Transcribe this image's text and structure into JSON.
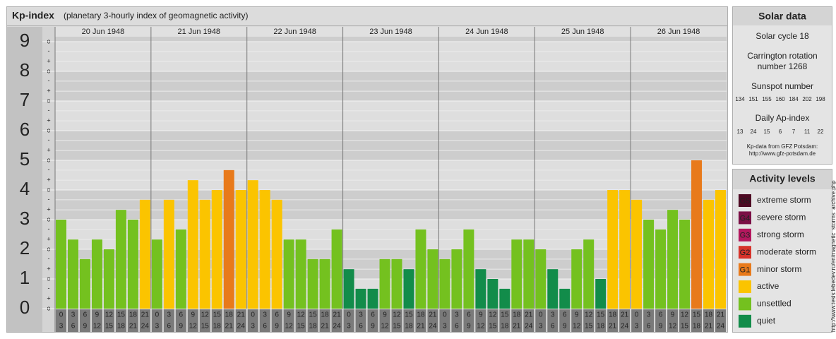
{
  "chart_data": {
    "type": "bar",
    "title": "Kp-index",
    "subtitle": "(planetary 3-hourly index of geomagnetic activity)",
    "days": [
      "20 Jun 1948",
      "21 Jun 1948",
      "22 Jun 1948",
      "23 Jun 1948",
      "24 Jun 1948",
      "25 Jun 1948",
      "26 Jun 1948"
    ],
    "hour_labels": [
      [
        0,
        3
      ],
      [
        3,
        6
      ],
      [
        6,
        9
      ],
      [
        9,
        12
      ],
      [
        12,
        15
      ],
      [
        15,
        18
      ],
      [
        18,
        21
      ],
      [
        21,
        24
      ]
    ],
    "values": [
      3,
      2.33,
      1.67,
      2.33,
      2,
      3.33,
      3,
      3.67,
      2.33,
      3.67,
      2.67,
      4.33,
      3.67,
      4,
      4.67,
      4,
      4.33,
      4,
      3.67,
      2.33,
      2.33,
      1.67,
      1.67,
      2.67,
      1.33,
      0.67,
      0.67,
      1.67,
      1.67,
      1.33,
      2.67,
      2,
      1.67,
      2,
      2.67,
      1.33,
      1,
      0.67,
      2.33,
      2.33,
      2,
      1.33,
      0.67,
      2,
      2.33,
      1,
      4,
      4,
      3.67,
      3,
      2.67,
      3.33,
      3,
      5,
      3.67,
      4
    ],
    "colors": [
      "#74c11f",
      "#74c11f",
      "#74c11f",
      "#74c11f",
      "#74c11f",
      "#74c11f",
      "#74c11f",
      "#fbc400",
      "#74c11f",
      "#fbc400",
      "#74c11f",
      "#fbc400",
      "#fbc400",
      "#fbc400",
      "#e87a1b",
      "#fbc400",
      "#fbc400",
      "#fbc400",
      "#fbc400",
      "#74c11f",
      "#74c11f",
      "#74c11f",
      "#74c11f",
      "#74c11f",
      "#128c4a",
      "#128c4a",
      "#128c4a",
      "#74c11f",
      "#74c11f",
      "#128c4a",
      "#74c11f",
      "#74c11f",
      "#74c11f",
      "#74c11f",
      "#74c11f",
      "#128c4a",
      "#128c4a",
      "#128c4a",
      "#74c11f",
      "#74c11f",
      "#74c11f",
      "#128c4a",
      "#128c4a",
      "#74c11f",
      "#74c11f",
      "#128c4a",
      "#fbc400",
      "#fbc400",
      "#fbc400",
      "#74c11f",
      "#74c11f",
      "#74c11f",
      "#74c11f",
      "#e87a1b",
      "#fbc400",
      "#fbc400"
    ],
    "ylim": [
      0,
      9.5
    ],
    "yticks": [
      0,
      1,
      2,
      3,
      4,
      5,
      6,
      7,
      8,
      9
    ],
    "minor_ticks": [
      {
        "value": 0,
        "label": "o"
      },
      {
        "value": 0.33,
        "label": "+"
      },
      {
        "value": 0.67,
        "label": "-"
      },
      {
        "value": 1,
        "label": "o"
      },
      {
        "value": 1.33,
        "label": "+"
      },
      {
        "value": 1.67,
        "label": "-"
      },
      {
        "value": 2,
        "label": "o"
      },
      {
        "value": 2.33,
        "label": "+"
      },
      {
        "value": 2.67,
        "label": "-"
      },
      {
        "value": 3,
        "label": "o"
      },
      {
        "value": 3.33,
        "label": "+"
      },
      {
        "value": 3.67,
        "label": "-"
      },
      {
        "value": 4,
        "label": "o"
      },
      {
        "value": 4.33,
        "label": "+"
      },
      {
        "value": 4.67,
        "label": "-"
      },
      {
        "value": 5,
        "label": "o"
      },
      {
        "value": 5.33,
        "label": "+"
      },
      {
        "value": 5.67,
        "label": "-"
      },
      {
        "value": 6,
        "label": "o"
      },
      {
        "value": 6.33,
        "label": "+"
      },
      {
        "value": 6.67,
        "label": "-"
      },
      {
        "value": 7,
        "label": "o"
      },
      {
        "value": 7.33,
        "label": "+"
      },
      {
        "value": 7.67,
        "label": "-"
      },
      {
        "value": 8,
        "label": "o"
      },
      {
        "value": 8.33,
        "label": "+"
      },
      {
        "value": 8.67,
        "label": "-"
      },
      {
        "value": 9,
        "label": "o"
      }
    ],
    "grid": true
  },
  "solar_data": {
    "title": "Solar data",
    "cycle": "Solar cycle 18",
    "carrington": [
      "Carrington rotation",
      "number 1268"
    ],
    "sunspot_title": "Sunspot number",
    "sunspot": [
      134,
      151,
      155,
      160,
      184,
      202,
      198
    ],
    "ap_title": "Daily Ap-index",
    "ap": [
      13,
      24,
      15,
      6,
      7,
      11,
      22
    ],
    "source": [
      "Kp-data from GFZ Potsdam:",
      "http://www.gfz-potsdam.de"
    ]
  },
  "activity_levels": {
    "title": "Activity levels",
    "items": [
      {
        "badge": "G5",
        "label": "extreme storm",
        "color": "#4d0a23"
      },
      {
        "badge": "G4",
        "label": "severe storm",
        "color": "#7a0f45"
      },
      {
        "badge": "G3",
        "label": "strong storm",
        "color": "#b3175e"
      },
      {
        "badge": "G2",
        "label": "moderate storm",
        "color": "#d6332a"
      },
      {
        "badge": "G1",
        "label": "minor storm",
        "color": "#e87a1b"
      },
      {
        "badge": null,
        "label": "active",
        "color": "#fbc400"
      },
      {
        "badge": null,
        "label": "unsettled",
        "color": "#74c11f"
      },
      {
        "badge": null,
        "label": "quiet",
        "color": "#128c4a"
      }
    ]
  },
  "side_note": "http://www.tesis.lebedev.ru/en/magnetic_storms_archive.php"
}
